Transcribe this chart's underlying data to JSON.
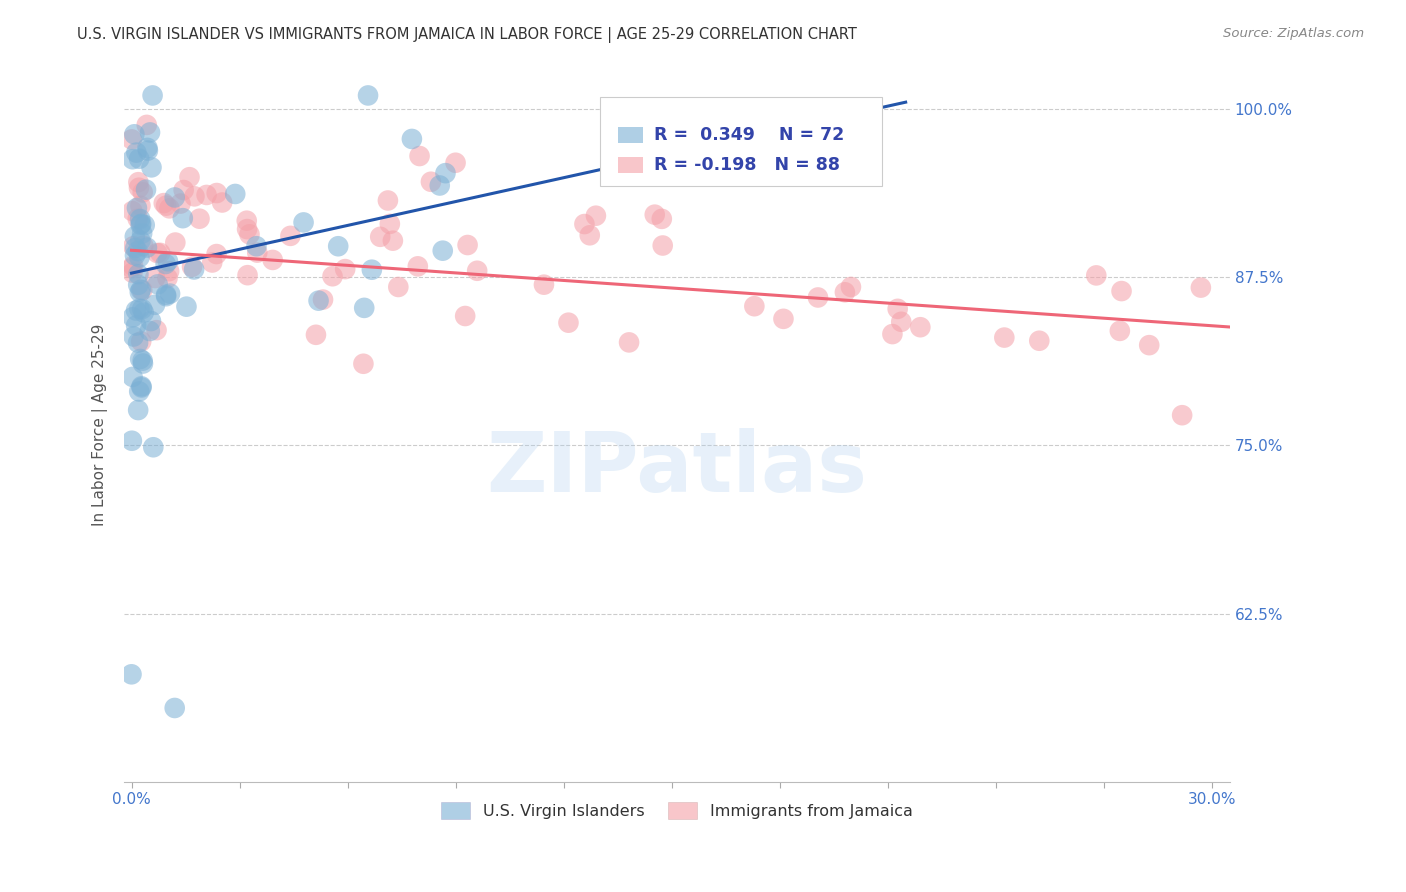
{
  "title": "U.S. VIRGIN ISLANDER VS IMMIGRANTS FROM JAMAICA IN LABOR FORCE | AGE 25-29 CORRELATION CHART",
  "source": "Source: ZipAtlas.com",
  "ylabel": "In Labor Force | Age 25-29",
  "ytick_labels": [
    "100.0%",
    "87.5%",
    "75.0%",
    "62.5%"
  ],
  "ytick_values": [
    1.0,
    0.875,
    0.75,
    0.625
  ],
  "ylim": [
    0.5,
    1.03
  ],
  "xlim": [
    -0.002,
    0.305
  ],
  "blue_R": 0.349,
  "blue_N": 72,
  "pink_R": -0.198,
  "pink_N": 88,
  "blue_color": "#7BAFD4",
  "pink_color": "#F4A0A8",
  "blue_line_color": "#2255AA",
  "pink_line_color": "#EE6677",
  "blue_line": {
    "x0": 0.0,
    "x1": 0.215,
    "y0": 0.878,
    "y1": 1.005
  },
  "pink_line": {
    "x0": 0.0,
    "x1": 0.305,
    "y0": 0.895,
    "y1": 0.838
  },
  "watermark": "ZIPatlas",
  "background_color": "#FFFFFF",
  "grid_color": "#CCCCCC",
  "label_color": "#4477CC"
}
